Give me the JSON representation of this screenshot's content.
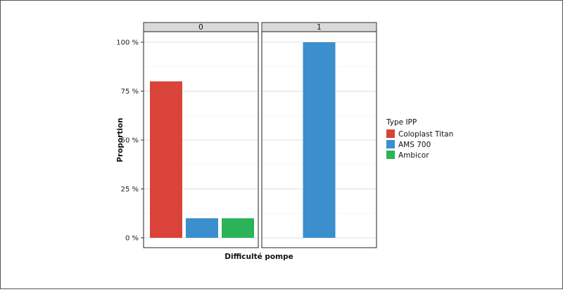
{
  "chart_data": {
    "type": "bar",
    "facet_variable_values": [
      "0",
      "1"
    ],
    "categories": [
      "Coloplast Titan",
      "AMS 700",
      "Ambicor"
    ],
    "series_colors": {
      "Coloplast Titan": "#d9433a",
      "AMS 700": "#3a8fcc",
      "Ambicor": "#2bb35a"
    },
    "panels": [
      {
        "facet": "0",
        "bars": [
          {
            "category": "Coloplast Titan",
            "value": 0.8
          },
          {
            "category": "AMS 700",
            "value": 0.1
          },
          {
            "category": "Ambicor",
            "value": 0.1
          }
        ]
      },
      {
        "facet": "1",
        "bars": [
          {
            "category": "AMS 700",
            "value": 1.0
          }
        ]
      }
    ],
    "xlabel": "Difficulté pompe",
    "ylabel": "Proportion",
    "ylim": [
      0,
      1.0
    ],
    "yticks": [
      0,
      0.25,
      0.5,
      0.75,
      1.0
    ],
    "ytick_labels": [
      "0 %",
      "25 %",
      "50 %",
      "75 %",
      "100 %"
    ],
    "legend": {
      "title": "Type IPP",
      "position": "right",
      "items": [
        "Coloplast Titan",
        "AMS 700",
        "Ambicor"
      ]
    },
    "grid": true
  }
}
